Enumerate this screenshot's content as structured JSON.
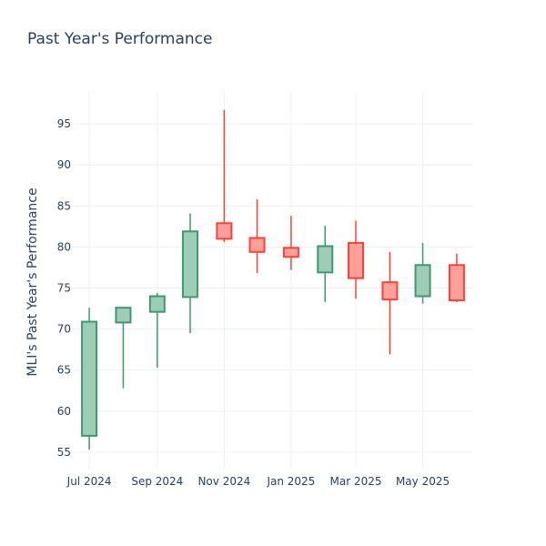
{
  "chart_data": {
    "type": "candlestick",
    "title": "Past Year's Performance",
    "xlabel": "",
    "ylabel": "MLI's Past Year's Performance",
    "xlim": [
      "2024-06-16",
      "2025-06-16"
    ],
    "ylim": [
      53.0,
      99.0
    ],
    "y_ticks": [
      55,
      60,
      65,
      70,
      75,
      80,
      85,
      90,
      95
    ],
    "x_ticks": [
      {
        "date": "2024-07-01",
        "label": "Jul 2024"
      },
      {
        "date": "2024-09-01",
        "label": "Sep 2024"
      },
      {
        "date": "2024-11-01",
        "label": "Nov 2024"
      },
      {
        "date": "2025-01-01",
        "label": "Jan 2025"
      },
      {
        "date": "2025-03-01",
        "label": "Mar 2025"
      },
      {
        "date": "2025-05-01",
        "label": "May 2025"
      }
    ],
    "grid": true,
    "colors": {
      "increasing_line": "#3d9970",
      "increasing_fill": "#9ecdb7",
      "decreasing_line": "#ff4136",
      "decreasing_fill": "#ffa09b",
      "grid": "#eef1f5",
      "text": "#2a3f5f"
    },
    "candles": [
      {
        "date": "2024-07-01",
        "open": 57.0,
        "high": 72.6,
        "low": 55.3,
        "close": 70.9
      },
      {
        "date": "2024-08-01",
        "open": 70.8,
        "high": 72.7,
        "low": 62.8,
        "close": 72.6
      },
      {
        "date": "2024-09-01",
        "open": 72.1,
        "high": 74.4,
        "low": 65.3,
        "close": 74.0
      },
      {
        "date": "2024-10-01",
        "open": 73.9,
        "high": 84.1,
        "low": 69.5,
        "close": 81.9
      },
      {
        "date": "2024-11-01",
        "open": 82.9,
        "high": 96.7,
        "low": 80.6,
        "close": 81.0
      },
      {
        "date": "2024-12-01",
        "open": 81.1,
        "high": 85.8,
        "low": 76.8,
        "close": 79.4
      },
      {
        "date": "2025-01-01",
        "open": 79.9,
        "high": 83.8,
        "low": 77.2,
        "close": 78.8
      },
      {
        "date": "2025-02-01",
        "open": 76.9,
        "high": 82.6,
        "low": 73.3,
        "close": 80.1
      },
      {
        "date": "2025-03-01",
        "open": 80.5,
        "high": 83.2,
        "low": 73.7,
        "close": 76.2
      },
      {
        "date": "2025-04-01",
        "open": 75.7,
        "high": 79.4,
        "low": 66.9,
        "close": 73.6
      },
      {
        "date": "2025-05-01",
        "open": 74.0,
        "high": 80.5,
        "low": 73.1,
        "close": 77.8
      },
      {
        "date": "2025-06-01",
        "open": 77.8,
        "high": 79.2,
        "low": 73.3,
        "close": 73.5
      }
    ]
  }
}
